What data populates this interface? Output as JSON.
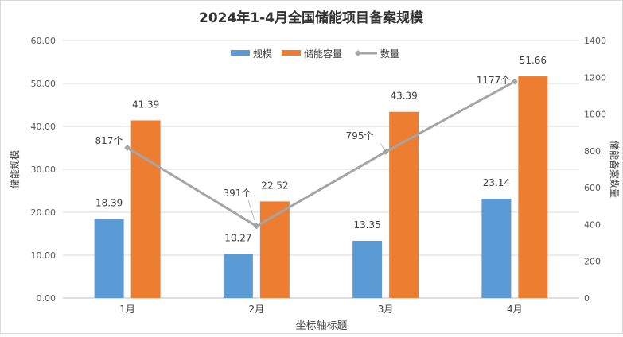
{
  "chart_data": {
    "type": "bar+line",
    "title": "2024年1-4月全国储能项目备案规模",
    "xlabel": "坐标轴标题",
    "ylabel": "储能规模",
    "y2label": "储能备案数量",
    "categories": [
      "1月",
      "2月",
      "3月",
      "4月"
    ],
    "ylim": [
      0,
      60
    ],
    "y2lim": [
      0,
      1400
    ],
    "yticks": [
      "0.00",
      "10.00",
      "20.00",
      "30.00",
      "40.00",
      "50.00",
      "60.00"
    ],
    "y2ticks": [
      "0",
      "200",
      "400",
      "600",
      "800",
      "1000",
      "1200",
      "1400"
    ],
    "grid": true,
    "legend_position": "top",
    "series": [
      {
        "name": "规模",
        "type": "bar",
        "axis": "left",
        "color": "#5b9bd5",
        "values": [
          18.39,
          10.27,
          13.35,
          23.14
        ],
        "labels": [
          "18.39",
          "10.27",
          "13.35",
          "23.14"
        ]
      },
      {
        "name": "储能容量",
        "type": "bar",
        "axis": "left",
        "color": "#ed7d31",
        "values": [
          41.39,
          22.52,
          43.39,
          51.66
        ],
        "labels": [
          "41.39",
          "22.52",
          "43.39",
          "51.66"
        ]
      },
      {
        "name": "数量",
        "type": "line",
        "axis": "right",
        "color": "#a5a5a5",
        "values": [
          817,
          391,
          795,
          1177
        ],
        "labels": [
          "817个",
          "391个",
          "795个",
          "1177个"
        ]
      }
    ]
  }
}
